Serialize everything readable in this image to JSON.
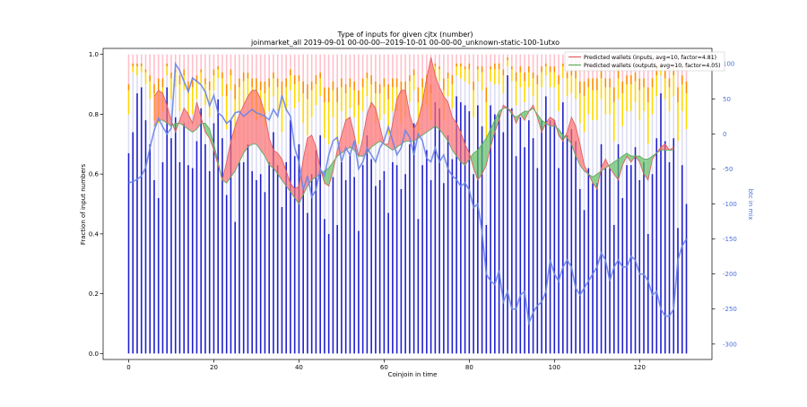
{
  "chart_data": {
    "type": "bar",
    "title": "Type of inputs for given cjtx (number)",
    "subtitle": "joinmarket_all 2019-09-01 00-00-00--2019-10-01 00-00-00_unknown-static-100-1utxo",
    "xlabel": "Coinjoin in time",
    "ylabel": "Fraction of input numbers",
    "y2label": "btc in mix",
    "xlim": [
      -6,
      137
    ],
    "ylim": [
      -0.02,
      1.02
    ],
    "y2lim": [
      -322,
      122
    ],
    "x_ticks": [
      0,
      20,
      40,
      60,
      80,
      100,
      120
    ],
    "y_ticks": [
      0.0,
      0.2,
      0.4,
      0.6,
      0.8,
      1.0
    ],
    "y2_ticks": [
      100,
      50,
      0,
      -50,
      -100,
      -150,
      -200,
      -250,
      -300
    ],
    "x": [
      0,
      1,
      2,
      3,
      4,
      5,
      6,
      7,
      8,
      9,
      10,
      11,
      12,
      13,
      14,
      15,
      16,
      17,
      18,
      19,
      20,
      21,
      22,
      23,
      24,
      25,
      26,
      27,
      28,
      29,
      30,
      31,
      32,
      33,
      34,
      35,
      36,
      37,
      38,
      39,
      40,
      41,
      42,
      43,
      44,
      45,
      46,
      47,
      48,
      49,
      50,
      51,
      52,
      53,
      54,
      55,
      56,
      57,
      58,
      59,
      60,
      61,
      62,
      63,
      64,
      65,
      66,
      67,
      68,
      69,
      70,
      71,
      72,
      73,
      74,
      75,
      76,
      77,
      78,
      79,
      80,
      81,
      82,
      83,
      84,
      85,
      86,
      87,
      88,
      89,
      90,
      91,
      92,
      93,
      94,
      95,
      96,
      97,
      98,
      99,
      100,
      101,
      102,
      103,
      104,
      105,
      106,
      107,
      108,
      109,
      110,
      111,
      112,
      113,
      114,
      115,
      116,
      117,
      118,
      119,
      120,
      121,
      122,
      123,
      124,
      125,
      126,
      127,
      128,
      129,
      130,
      131
    ],
    "bar_series": [
      {
        "role": "blue",
        "color": "#1f1fd0",
        "values": [
          0.67,
          0.74,
          0.87,
          0.89,
          0.78,
          0.7,
          0.58,
          0.52,
          0.64,
          0.89,
          0.72,
          0.79,
          0.64,
          0.77,
          0.63,
          0.62,
          0.71,
          0.82,
          0.7,
          0.61,
          0.77,
          0.85,
          0.72,
          0.53,
          0.78,
          0.44,
          0.64,
          0.64,
          0.7,
          0.61,
          0.58,
          0.6,
          0.54,
          0.64,
          0.74,
          0.63,
          0.49,
          0.64,
          0.78,
          0.66,
          0.7,
          0.55,
          0.47,
          0.6,
          0.68,
          0.73,
          0.45,
          0.4,
          0.59,
          0.43,
          0.64,
          0.58,
          0.67,
          0.59,
          0.41,
          0.63,
          0.73,
          0.65,
          0.56,
          0.58,
          0.61,
          0.47,
          0.64,
          0.63,
          0.55,
          0.6,
          0.7,
          0.77,
          0.45,
          0.63,
          0.68,
          0.58,
          0.84,
          0.82,
          0.57,
          0.73,
          0.65,
          0.86,
          0.84,
          0.83,
          0.81,
          0.6,
          0.83,
          0.76,
          0.43,
          0.83,
          0.8,
          0.8,
          0.74,
          0.93,
          0.82,
          0.66,
          0.79,
          0.69,
          0.78,
          0.72,
          0.62,
          0.78,
          0.86,
          0.78,
          0.78,
          0.62,
          0.84,
          0.73,
          0.75,
          0.71,
          0.55,
          0.48,
          0.62,
          0.57,
          0.57,
          0.7,
          0.62,
          0.62,
          0.43,
          0.7,
          0.52,
          0.63,
          0.63,
          0.69,
          0.58,
          0.64,
          0.4,
          0.6,
          0.72,
          0.87,
          0.71,
          0.64,
          0.72,
          0.42,
          0.63,
          0.5
        ]
      },
      {
        "role": "lavender",
        "color": "#dcdcf4",
        "values": [
          0.13,
          0.2,
          0.06,
          0.05,
          0.12,
          0.15,
          0.2,
          0.25,
          0.17,
          0.04,
          0.13,
          0.1,
          0.17,
          0.11,
          0.17,
          0.18,
          0.14,
          0.08,
          0.13,
          0.18,
          0.11,
          0.07,
          0.14,
          0.22,
          0.1,
          0.28,
          0.17,
          0.18,
          0.15,
          0.19,
          0.2,
          0.19,
          0.22,
          0.17,
          0.12,
          0.18,
          0.25,
          0.17,
          0.1,
          0.16,
          0.14,
          0.22,
          0.26,
          0.19,
          0.15,
          0.13,
          0.27,
          0.3,
          0.2,
          0.28,
          0.17,
          0.2,
          0.15,
          0.2,
          0.29,
          0.18,
          0.13,
          0.17,
          0.21,
          0.2,
          0.19,
          0.26,
          0.17,
          0.18,
          0.22,
          0.19,
          0.14,
          0.11,
          0.27,
          0.18,
          0.15,
          0.2,
          0.08,
          0.09,
          0.21,
          0.13,
          0.17,
          0.07,
          0.08,
          0.08,
          0.09,
          0.19,
          0.08,
          0.12,
          0.28,
          0.08,
          0.1,
          0.1,
          0.13,
          0.03,
          0.09,
          0.17,
          0.1,
          0.15,
          0.11,
          0.14,
          0.19,
          0.11,
          0.07,
          0.11,
          0.11,
          0.19,
          0.08,
          0.13,
          0.12,
          0.14,
          0.22,
          0.26,
          0.18,
          0.21,
          0.21,
          0.15,
          0.18,
          0.18,
          0.28,
          0.15,
          0.24,
          0.18,
          0.18,
          0.15,
          0.2,
          0.17,
          0.3,
          0.2,
          0.14,
          0.06,
          0.14,
          0.17,
          0.14,
          0.29,
          0.18,
          0.25
        ]
      },
      {
        "role": "yellow",
        "color": "#ffd700",
        "values": [
          0.08,
          0.02,
          0.03,
          0.02,
          0.04,
          0.06,
          0.09,
          0.11,
          0.08,
          0.03,
          0.07,
          0.05,
          0.09,
          0.05,
          0.08,
          0.09,
          0.06,
          0.04,
          0.07,
          0.09,
          0.05,
          0.03,
          0.06,
          0.11,
          0.05,
          0.13,
          0.08,
          0.09,
          0.07,
          0.09,
          0.1,
          0.09,
          0.11,
          0.08,
          0.06,
          0.08,
          0.12,
          0.08,
          0.05,
          0.08,
          0.07,
          0.1,
          0.12,
          0.09,
          0.07,
          0.06,
          0.12,
          0.14,
          0.09,
          0.13,
          0.08,
          0.09,
          0.07,
          0.09,
          0.13,
          0.08,
          0.06,
          0.08,
          0.1,
          0.09,
          0.09,
          0.12,
          0.08,
          0.08,
          0.1,
          0.09,
          0.07,
          0.05,
          0.12,
          0.08,
          0.07,
          0.09,
          0.04,
          0.04,
          0.1,
          0.06,
          0.08,
          0.03,
          0.04,
          0.04,
          0.05,
          0.09,
          0.04,
          0.06,
          0.13,
          0.04,
          0.05,
          0.05,
          0.06,
          0.02,
          0.04,
          0.08,
          0.05,
          0.07,
          0.05,
          0.06,
          0.09,
          0.05,
          0.03,
          0.05,
          0.05,
          0.09,
          0.04,
          0.06,
          0.06,
          0.07,
          0.1,
          0.12,
          0.09,
          0.1,
          0.1,
          0.07,
          0.09,
          0.09,
          0.13,
          0.07,
          0.11,
          0.09,
          0.09,
          0.07,
          0.1,
          0.08,
          0.14,
          0.09,
          0.07,
          0.03,
          0.07,
          0.08,
          0.07,
          0.13,
          0.09,
          0.12
        ]
      },
      {
        "role": "orange",
        "color": "#ff8c00",
        "values": [
          0.02,
          0.01,
          0.01,
          0.01,
          0.01,
          0.02,
          0.03,
          0.04,
          0.03,
          0.01,
          0.02,
          0.01,
          0.03,
          0.02,
          0.03,
          0.03,
          0.02,
          0.01,
          0.02,
          0.03,
          0.02,
          0.01,
          0.02,
          0.04,
          0.02,
          0.05,
          0.03,
          0.03,
          0.02,
          0.03,
          0.04,
          0.03,
          0.04,
          0.03,
          0.02,
          0.03,
          0.05,
          0.03,
          0.02,
          0.03,
          0.02,
          0.04,
          0.05,
          0.03,
          0.03,
          0.02,
          0.05,
          0.05,
          0.03,
          0.05,
          0.03,
          0.03,
          0.03,
          0.03,
          0.05,
          0.03,
          0.02,
          0.03,
          0.04,
          0.03,
          0.03,
          0.05,
          0.03,
          0.03,
          0.04,
          0.03,
          0.02,
          0.02,
          0.05,
          0.03,
          0.03,
          0.03,
          0.01,
          0.01,
          0.04,
          0.02,
          0.03,
          0.01,
          0.01,
          0.01,
          0.02,
          0.03,
          0.01,
          0.02,
          0.05,
          0.01,
          0.02,
          0.02,
          0.02,
          0.01,
          0.01,
          0.03,
          0.02,
          0.03,
          0.02,
          0.02,
          0.03,
          0.02,
          0.01,
          0.02,
          0.02,
          0.03,
          0.01,
          0.02,
          0.02,
          0.03,
          0.04,
          0.05,
          0.03,
          0.04,
          0.04,
          0.03,
          0.03,
          0.03,
          0.05,
          0.03,
          0.04,
          0.03,
          0.03,
          0.03,
          0.04,
          0.03,
          0.05,
          0.03,
          0.03,
          0.01,
          0.03,
          0.03,
          0.03,
          0.05,
          0.03,
          0.04
        ]
      },
      {
        "role": "pink",
        "color": "#ffc0cb",
        "values": [
          0.1,
          0.03,
          0.03,
          0.03,
          0.05,
          0.07,
          0.1,
          0.08,
          0.08,
          0.03,
          0.06,
          0.05,
          0.07,
          0.05,
          0.09,
          0.08,
          0.07,
          0.05,
          0.08,
          0.09,
          0.05,
          0.04,
          0.06,
          0.1,
          0.05,
          0.1,
          0.08,
          0.06,
          0.06,
          0.08,
          0.08,
          0.09,
          0.09,
          0.08,
          0.06,
          0.08,
          0.09,
          0.08,
          0.05,
          0.07,
          0.07,
          0.09,
          0.1,
          0.09,
          0.07,
          0.06,
          0.11,
          0.11,
          0.09,
          0.11,
          0.08,
          0.1,
          0.08,
          0.09,
          0.12,
          0.08,
          0.06,
          0.07,
          0.09,
          0.1,
          0.08,
          0.1,
          0.08,
          0.08,
          0.09,
          0.09,
          0.07,
          0.05,
          0.11,
          0.08,
          0.07,
          0.1,
          0.03,
          0.04,
          0.08,
          0.06,
          0.07,
          0.03,
          0.03,
          0.04,
          0.03,
          0.09,
          0.04,
          0.04,
          0.11,
          0.04,
          0.03,
          0.03,
          0.05,
          0.01,
          0.04,
          0.06,
          0.04,
          0.06,
          0.04,
          0.06,
          0.07,
          0.04,
          0.03,
          0.04,
          0.04,
          0.07,
          0.03,
          0.06,
          0.05,
          0.05,
          0.09,
          0.09,
          0.08,
          0.08,
          0.08,
          0.05,
          0.08,
          0.08,
          0.11,
          0.05,
          0.09,
          0.07,
          0.07,
          0.06,
          0.08,
          0.08,
          0.11,
          0.08,
          0.04,
          0.03,
          0.05,
          0.08,
          0.04,
          0.11,
          0.07,
          0.09
        ]
      }
    ],
    "line_series": [
      {
        "name": "Predicted wallets (inputs, avg=10, factor=4.81)",
        "color": "#e06060",
        "values": [
          null,
          null,
          null,
          null,
          null,
          null,
          0.86,
          0.88,
          0.87,
          0.83,
          0.78,
          0.74,
          0.78,
          0.82,
          0.8,
          0.77,
          0.84,
          0.79,
          0.74,
          0.72,
          0.68,
          0.63,
          0.58,
          0.64,
          0.71,
          0.76,
          0.8,
          0.83,
          0.86,
          0.88,
          0.88,
          0.85,
          0.8,
          0.72,
          0.68,
          0.67,
          0.65,
          0.61,
          0.57,
          0.55,
          0.56,
          0.65,
          0.72,
          0.73,
          0.69,
          0.62,
          0.57,
          0.56,
          0.61,
          0.68,
          0.73,
          0.78,
          0.79,
          0.73,
          0.66,
          0.72,
          0.8,
          0.84,
          0.82,
          0.76,
          0.7,
          0.7,
          0.77,
          0.85,
          0.88,
          0.88,
          0.8,
          0.75,
          0.78,
          0.84,
          0.92,
          0.99,
          0.93,
          0.89,
          0.86,
          0.84,
          0.79,
          0.77,
          0.74,
          0.7,
          0.67,
          0.62,
          0.58,
          0.6,
          0.63,
          0.69,
          0.74,
          0.78,
          0.83,
          0.82,
          0.81,
          0.77,
          0.8,
          0.78,
          0.81,
          0.83,
          0.79,
          0.74,
          0.77,
          0.79,
          0.78,
          0.73,
          0.71,
          0.74,
          0.79,
          0.76,
          0.7,
          0.63,
          0.6,
          0.57,
          0.55,
          0.62,
          0.65,
          0.62,
          0.6,
          0.58,
          0.63,
          0.66,
          0.64,
          0.66,
          0.64,
          0.6,
          0.58,
          0.65,
          0.67,
          0.69,
          0.7,
          0.68,
          0.69,
          null,
          null,
          null
        ]
      },
      {
        "name": "Predicted wallets (outputs, avg=10, factor=4.05)",
        "color": "#5faa5f",
        "values": [
          null,
          null,
          null,
          null,
          null,
          null,
          0.76,
          0.78,
          0.78,
          0.77,
          0.76,
          0.77,
          0.77,
          0.76,
          0.75,
          0.74,
          0.75,
          0.77,
          0.77,
          0.75,
          0.7,
          0.64,
          0.58,
          0.57,
          0.59,
          0.61,
          0.64,
          0.67,
          0.69,
          0.7,
          0.7,
          0.68,
          0.66,
          0.63,
          0.62,
          0.6,
          0.58,
          0.56,
          0.54,
          0.52,
          0.5,
          0.53,
          0.56,
          0.58,
          0.59,
          0.6,
          0.61,
          0.62,
          0.64,
          0.66,
          0.67,
          0.68,
          0.69,
          0.68,
          0.66,
          0.66,
          0.67,
          0.69,
          0.7,
          0.71,
          0.7,
          0.69,
          0.68,
          0.69,
          0.7,
          0.71,
          0.71,
          0.71,
          0.72,
          0.73,
          0.74,
          0.75,
          0.76,
          0.75,
          0.73,
          0.71,
          0.68,
          0.66,
          0.64,
          0.63,
          0.65,
          0.67,
          0.68,
          0.7,
          0.72,
          0.75,
          0.78,
          0.81,
          0.82,
          0.82,
          0.8,
          0.79,
          0.8,
          0.81,
          0.81,
          0.82,
          0.8,
          0.78,
          0.77,
          0.76,
          0.76,
          0.75,
          0.73,
          0.72,
          0.7,
          0.66,
          0.63,
          0.61,
          0.6,
          0.59,
          0.6,
          0.61,
          0.62,
          0.63,
          0.64,
          0.65,
          0.66,
          0.67,
          0.66,
          0.66,
          0.66,
          0.65,
          0.65,
          0.66,
          0.67,
          0.68,
          0.68,
          0.68,
          0.68,
          null,
          null,
          null
        ]
      }
    ],
    "btc_series": {
      "name": "btc in mix",
      "color": "#6a85e8",
      "values": [
        -70,
        -68,
        -65,
        -60,
        -48,
        -20,
        5,
        22,
        10,
        0,
        8,
        100,
        90,
        75,
        60,
        80,
        75,
        70,
        60,
        40,
        55,
        30,
        25,
        15,
        20,
        30,
        32,
        25,
        30,
        35,
        30,
        28,
        25,
        20,
        35,
        25,
        55,
        35,
        25,
        -20,
        -40,
        -80,
        -60,
        -90,
        -80,
        -50,
        -60,
        -30,
        -10,
        -5,
        -40,
        -20,
        -30,
        -10,
        -50,
        -40,
        -20,
        -30,
        -40,
        -20,
        -10,
        10,
        -10,
        -30,
        -20,
        5,
        -5,
        -30,
        0,
        -10,
        -35,
        -40,
        -20,
        -40,
        -30,
        -50,
        -60,
        -65,
        -75,
        -70,
        -80,
        -105,
        -100,
        -140,
        -200,
        -210,
        -215,
        -195,
        -240,
        -225,
        -250,
        -250,
        -230,
        -225,
        -270,
        -255,
        -245,
        -240,
        -225,
        -180,
        -200,
        -210,
        -190,
        -180,
        -190,
        -220,
        -230,
        -220,
        -210,
        -200,
        -190,
        -170,
        -180,
        -210,
        -190,
        -180,
        -190,
        -190,
        -175,
        -180,
        -200,
        -200,
        -210,
        -230,
        -225,
        -250,
        -260,
        -260,
        -250,
        -180,
        -160,
        -150
      ]
    },
    "legend_position": "top-right"
  }
}
